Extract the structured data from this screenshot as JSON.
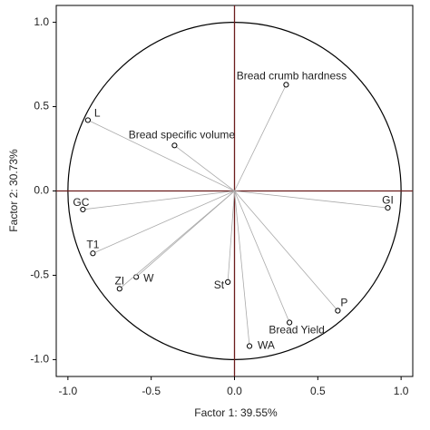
{
  "chart_data": {
    "type": "scatter",
    "xlabel": "Factor 1: 39.55%",
    "ylabel": "Factor 2: 30.73%",
    "points": [
      "Bread crumb hardness",
      "L",
      "Bread specific volume",
      "GC",
      "GI",
      "T1",
      "W",
      "ZI",
      "St",
      "P",
      "Bread Yield",
      "WA"
    ],
    "x": [
      0.31,
      -0.88,
      -0.36,
      -0.91,
      0.92,
      -0.85,
      -0.59,
      -0.69,
      -0.04,
      0.62,
      0.33,
      0.09
    ],
    "y": [
      0.63,
      0.42,
      0.27,
      -0.11,
      -0.1,
      -0.37,
      -0.51,
      -0.58,
      -0.54,
      -0.71,
      -0.78,
      -0.92
    ],
    "xlim": [
      -1.07,
      1.07
    ],
    "ylim": [
      -1.1,
      1.1
    ],
    "xticks": [
      {
        "value": -1,
        "label": "-1.0"
      },
      {
        "value": -0.5,
        "label": "-0.5"
      },
      {
        "value": 0,
        "label": "0.0"
      },
      {
        "value": 0.5,
        "label": "0.5"
      },
      {
        "value": 1,
        "label": "1.0"
      }
    ],
    "yticks": [
      {
        "value": 1,
        "label": "1.0"
      },
      {
        "value": 0.5,
        "label": "0.5"
      },
      {
        "value": 0,
        "label": "0.0"
      },
      {
        "value": -0.5,
        "label": "-0.5"
      },
      {
        "value": -1,
        "label": "-1.0"
      }
    ],
    "grid": false,
    "marker_color": "#000000",
    "vector_color": "#aaaaaa",
    "zero_line_color": "#6b1c1c"
  }
}
